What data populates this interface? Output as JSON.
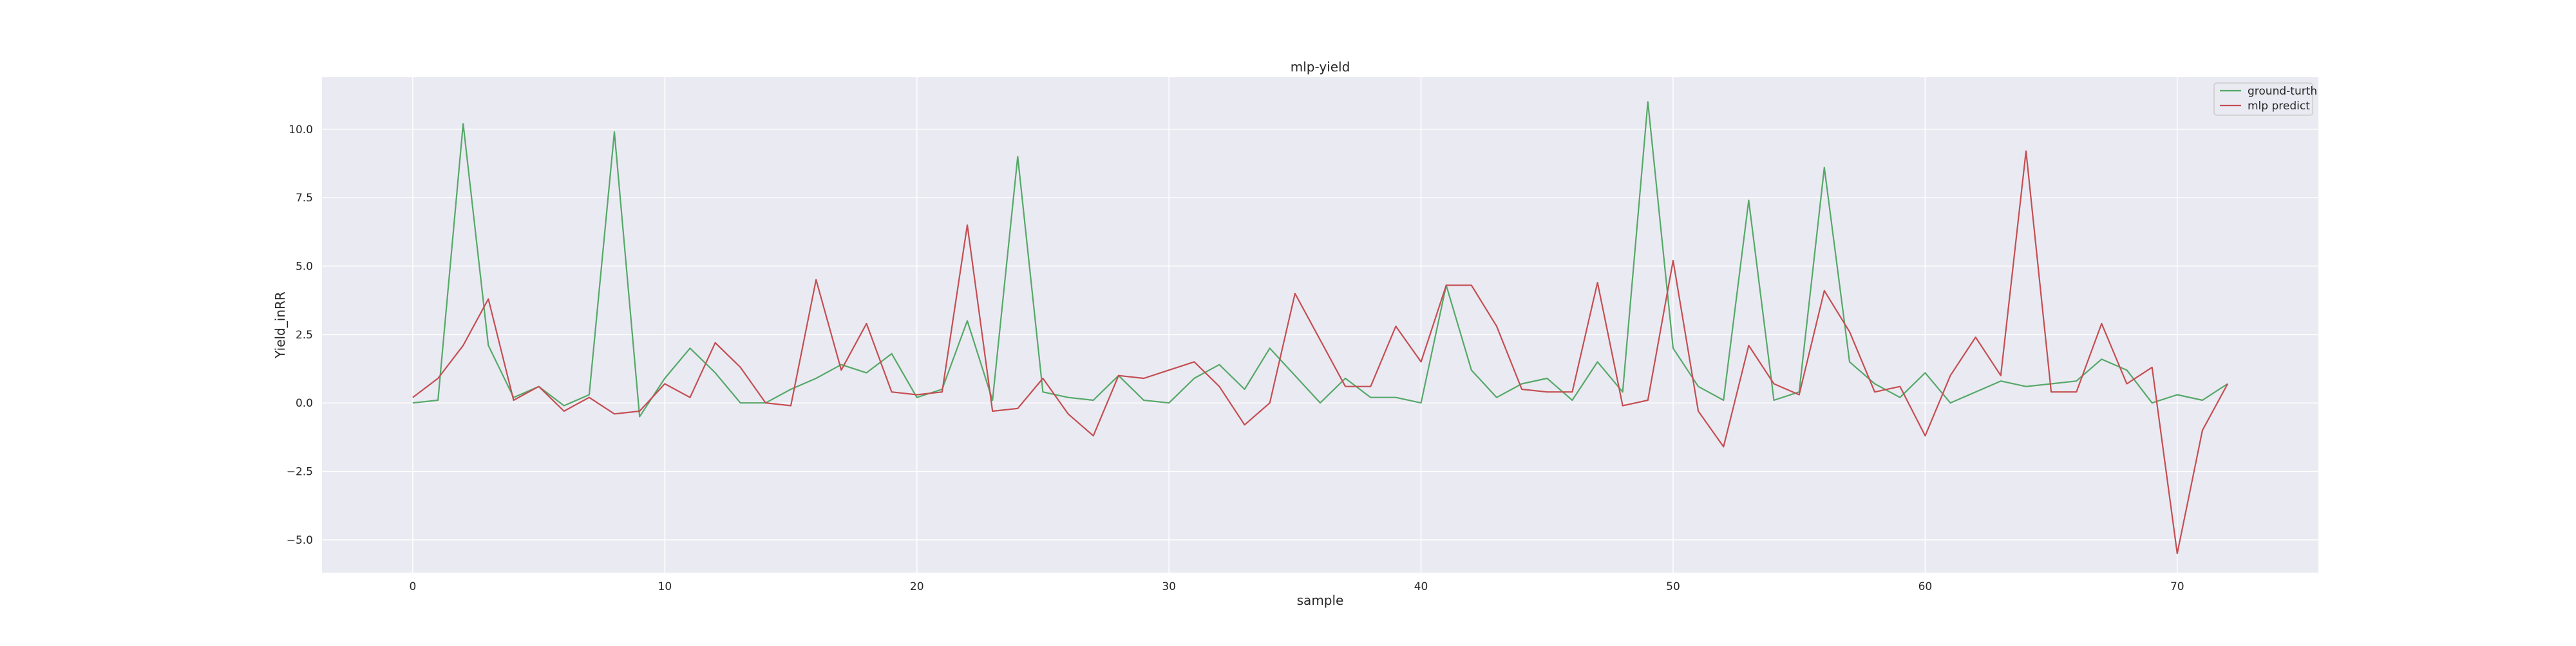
{
  "chart_data": {
    "type": "line",
    "title": "mlp-yield",
    "xlabel": "sample",
    "ylabel": "Yield_inRR",
    "xlim": [
      -3.6,
      75.6
    ],
    "ylim": [
      -6.2,
      11.9
    ],
    "xticks": [
      0,
      10,
      20,
      30,
      40,
      50,
      60,
      70
    ],
    "yticks": [
      -5.0,
      -2.5,
      0.0,
      2.5,
      5.0,
      7.5,
      10.0
    ],
    "ytick_labels": [
      "−5.0",
      "−2.5",
      "0.0",
      "2.5",
      "5.0",
      "7.5",
      "10.0"
    ],
    "grid": true,
    "legend_position": "upper right",
    "background": "#eaeaf2",
    "series": [
      {
        "name": "ground-turth",
        "color": "#55a868",
        "x": [
          0,
          1,
          2,
          3,
          4,
          5,
          6,
          7,
          8,
          9,
          10,
          11,
          12,
          13,
          14,
          15,
          16,
          17,
          18,
          19,
          20,
          21,
          22,
          23,
          24,
          25,
          26,
          27,
          28,
          29,
          30,
          31,
          32,
          33,
          34,
          35,
          36,
          37,
          38,
          39,
          40,
          41,
          42,
          43,
          44,
          45,
          46,
          47,
          48,
          49,
          50,
          51,
          52,
          53,
          54,
          55,
          56,
          57,
          58,
          59,
          60,
          61,
          62,
          63,
          64,
          65,
          66,
          67,
          68,
          69,
          70,
          71,
          72
        ],
        "values": [
          0.0,
          0.1,
          10.2,
          2.1,
          0.2,
          0.6,
          -0.1,
          0.3,
          9.9,
          -0.5,
          0.9,
          2.0,
          1.1,
          0.0,
          0.0,
          0.5,
          0.9,
          1.4,
          1.1,
          1.8,
          0.2,
          0.5,
          3.0,
          0.1,
          9.0,
          0.4,
          0.2,
          0.1,
          1.0,
          0.1,
          0.0,
          0.9,
          1.4,
          0.5,
          2.0,
          1.0,
          0.0,
          0.9,
          0.2,
          0.2,
          0.0,
          4.3,
          1.2,
          0.2,
          0.7,
          0.9,
          0.1,
          1.5,
          0.4,
          11.0,
          2.0,
          0.6,
          0.1,
          7.4,
          0.1,
          0.4,
          8.6,
          1.5,
          0.7,
          0.2,
          1.1,
          0.0,
          0.4,
          0.8,
          0.6,
          0.7,
          0.8,
          1.6,
          1.2,
          0.0,
          0.3,
          0.1,
          0.7
        ]
      },
      {
        "name": "mlp predict",
        "color": "#c44e52",
        "x": [
          0,
          1,
          2,
          3,
          4,
          5,
          6,
          7,
          8,
          9,
          10,
          11,
          12,
          13,
          14,
          15,
          16,
          17,
          18,
          19,
          20,
          21,
          22,
          23,
          24,
          25,
          26,
          27,
          28,
          29,
          30,
          31,
          32,
          33,
          34,
          35,
          36,
          37,
          38,
          39,
          40,
          41,
          42,
          43,
          44,
          45,
          46,
          47,
          48,
          49,
          50,
          51,
          52,
          53,
          54,
          55,
          56,
          57,
          58,
          59,
          60,
          61,
          62,
          63,
          64,
          65,
          66,
          67,
          68,
          69,
          70,
          71,
          72
        ],
        "values": [
          0.2,
          0.9,
          2.1,
          3.8,
          0.1,
          0.6,
          -0.3,
          0.2,
          -0.4,
          -0.3,
          0.7,
          0.2,
          2.2,
          1.3,
          0.0,
          -0.1,
          4.5,
          1.2,
          2.9,
          0.4,
          0.3,
          0.4,
          6.5,
          -0.3,
          -0.2,
          0.9,
          -0.4,
          -1.2,
          1.0,
          0.9,
          1.2,
          1.5,
          0.6,
          -0.8,
          0.0,
          4.0,
          2.3,
          0.6,
          0.6,
          2.8,
          1.5,
          4.3,
          4.3,
          2.8,
          0.5,
          0.4,
          0.4,
          4.4,
          -0.1,
          0.1,
          5.2,
          -0.3,
          -1.6,
          2.1,
          0.7,
          0.3,
          4.1,
          2.6,
          0.4,
          0.6,
          -1.2,
          1.0,
          2.4,
          1.0,
          9.2,
          0.4,
          0.4,
          2.9,
          0.7,
          1.3,
          -5.5,
          -1.0,
          0.7
        ]
      }
    ]
  }
}
